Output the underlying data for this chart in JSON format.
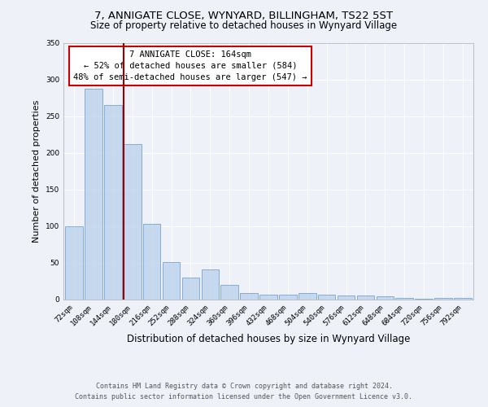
{
  "title": "7, ANNIGATE CLOSE, WYNYARD, BILLINGHAM, TS22 5ST",
  "subtitle": "Size of property relative to detached houses in Wynyard Village",
  "xlabel": "Distribution of detached houses by size in Wynyard Village",
  "ylabel": "Number of detached properties",
  "bar_labels": [
    "72sqm",
    "108sqm",
    "144sqm",
    "180sqm",
    "216sqm",
    "252sqm",
    "288sqm",
    "324sqm",
    "360sqm",
    "396sqm",
    "432sqm",
    "468sqm",
    "504sqm",
    "540sqm",
    "576sqm",
    "612sqm",
    "648sqm",
    "684sqm",
    "720sqm",
    "756sqm",
    "792sqm"
  ],
  "bar_values": [
    100,
    287,
    265,
    212,
    103,
    51,
    30,
    41,
    20,
    8,
    6,
    6,
    8,
    6,
    5,
    5,
    4,
    2,
    1,
    2,
    2
  ],
  "bar_color": "#b8d0ea",
  "bar_edge_color": "#6699cc",
  "bar_alpha": 0.75,
  "vline_x_index": 3,
  "vline_color": "#990000",
  "ylim": [
    0,
    350
  ],
  "yticks": [
    0,
    50,
    100,
    150,
    200,
    250,
    300,
    350
  ],
  "annotation_title": "7 ANNIGATE CLOSE: 164sqm",
  "annotation_line1": "← 52% of detached houses are smaller (584)",
  "annotation_line2": "48% of semi-detached houses are larger (547) →",
  "annotation_box_color": "#ffffff",
  "annotation_border_color": "#cc0000",
  "footer_line1": "Contains HM Land Registry data © Crown copyright and database right 2024.",
  "footer_line2": "Contains public sector information licensed under the Open Government Licence v3.0.",
  "background_color": "#eef2f8",
  "grid_color": "#ffffff",
  "title_fontsize": 9.5,
  "subtitle_fontsize": 8.5,
  "xlabel_fontsize": 8.5,
  "ylabel_fontsize": 8,
  "tick_fontsize": 6.5,
  "annotation_fontsize": 7.5,
  "footer_fontsize": 6
}
